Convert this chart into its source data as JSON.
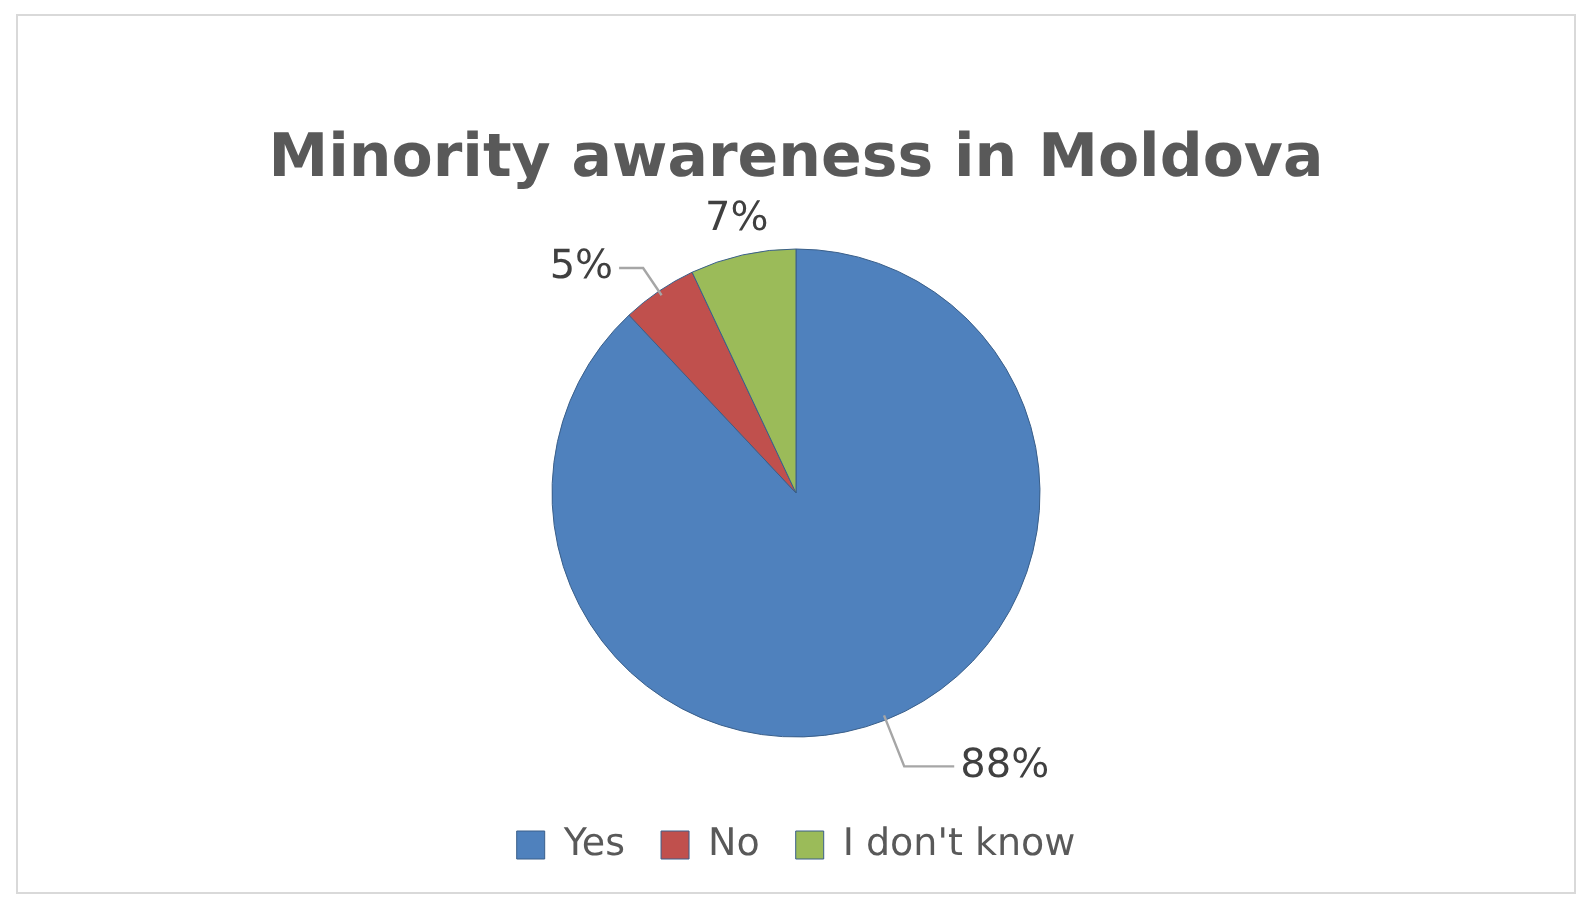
{
  "chart_data": {
    "type": "pie",
    "title": "Minority awareness in Moldova",
    "categories": [
      "Yes",
      "No",
      "I don't know"
    ],
    "values": [
      88,
      5,
      7
    ],
    "colors": [
      "#4f81bd",
      "#c0504d",
      "#9bbb59"
    ],
    "value_labels": [
      "88%",
      "5%",
      "7%"
    ],
    "legend": "bottom"
  }
}
